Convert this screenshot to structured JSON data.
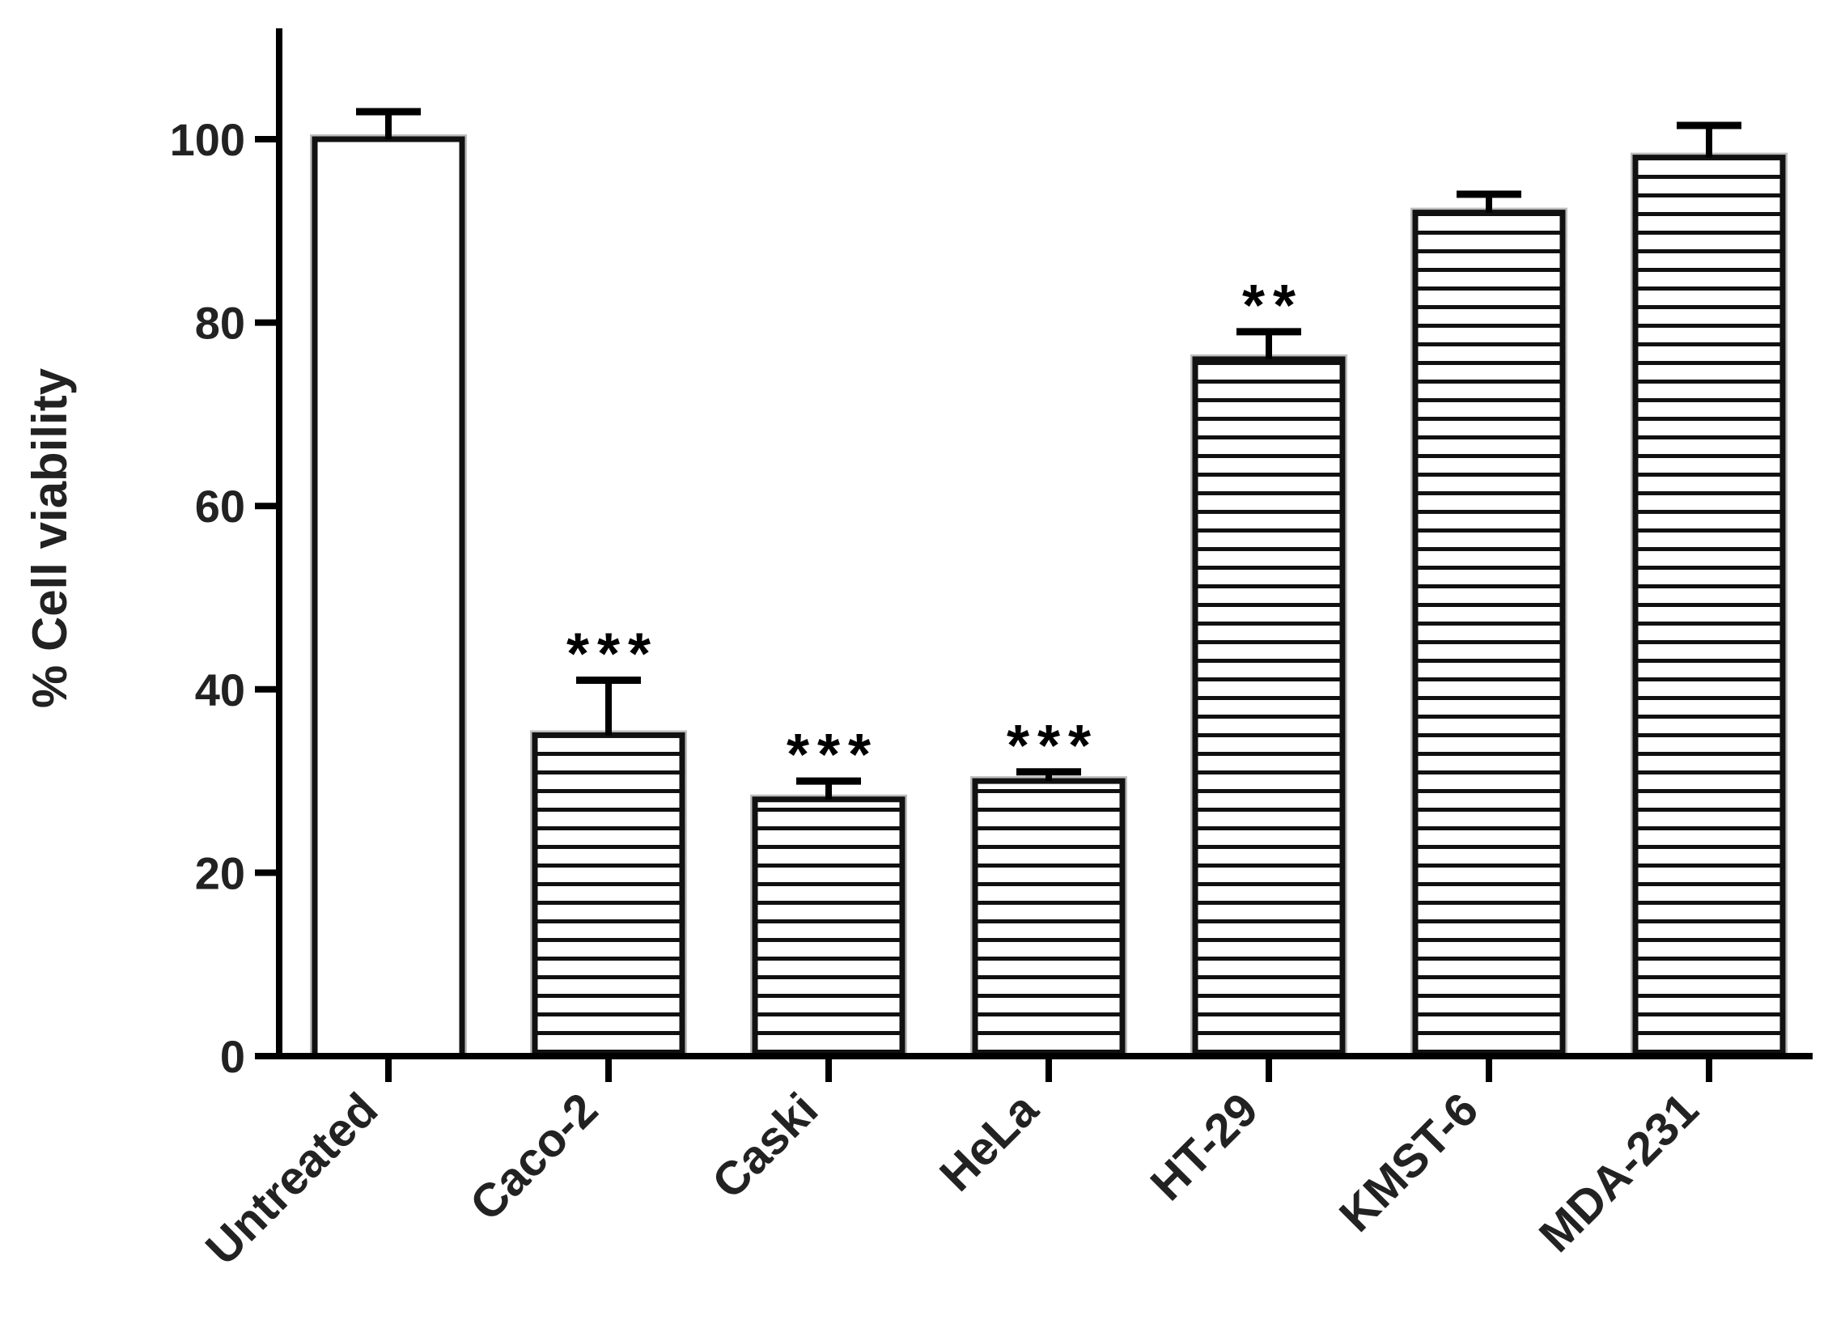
{
  "chart_data": {
    "type": "bar",
    "title": "",
    "xlabel": "",
    "ylabel": "% Cell viability",
    "ylim": [
      0,
      110
    ],
    "yticks": [
      0,
      20,
      40,
      60,
      80,
      100
    ],
    "grid": false,
    "legend": "none",
    "categories": [
      "Untreated",
      "Caco-2",
      "Caski",
      "HeLa",
      "HT-29",
      "KMST-6",
      "MDA-231"
    ],
    "values": [
      100,
      35,
      28,
      30,
      76,
      92,
      98
    ],
    "errors": [
      3,
      6,
      2,
      1,
      3,
      2,
      3.5
    ],
    "significance": [
      "",
      "***",
      "***",
      "***",
      "**",
      "",
      ""
    ],
    "fill_patterns": [
      "solid-white",
      "horizontal-lines",
      "horizontal-lines",
      "horizontal-lines",
      "horizontal-lines",
      "horizontal-lines",
      "horizontal-lines"
    ],
    "colors": {
      "bar_edge": "#111111",
      "bar_fill": "#ffffff",
      "hatch": "#111111",
      "axis": "#000000",
      "text": "#222222"
    }
  }
}
